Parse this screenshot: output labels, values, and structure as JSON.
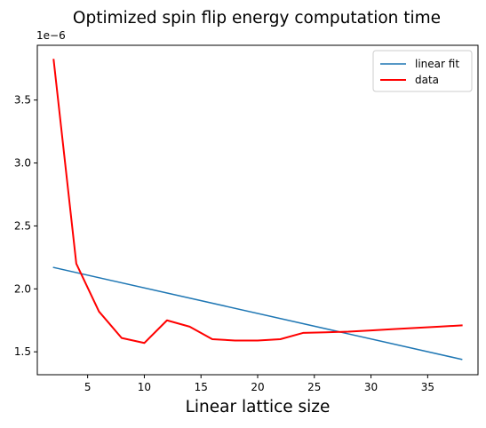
{
  "chart_data": {
    "type": "line",
    "title": "Optimized spin flip energy computation time",
    "xlabel": "Linear lattice size",
    "ylabel": "",
    "y_offset_label": "1e−6",
    "y_scale_factor": 1e-06,
    "xlim": [
      0.56,
      39.44
    ],
    "ylim": [
      1.318,
      3.935
    ],
    "xticks": [
      5,
      10,
      15,
      20,
      25,
      30,
      35
    ],
    "yticks": [
      1.5,
      2.0,
      2.5,
      3.0,
      3.5
    ],
    "xtick_labels": [
      "5",
      "10",
      "15",
      "20",
      "25",
      "30",
      "35"
    ],
    "ytick_labels": [
      "1.5",
      "2.0",
      "2.5",
      "3.0",
      "3.5"
    ],
    "grid": false,
    "legend_position": "top-right",
    "series": [
      {
        "name": "linear fit",
        "color": "#1f77b4",
        "line_width": 1.5,
        "x": [
          2,
          38
        ],
        "y": [
          2.17,
          1.44
        ]
      },
      {
        "name": "data",
        "color": "#ff0000",
        "line_width": 2,
        "x": [
          2,
          4,
          6,
          8,
          10,
          12,
          14,
          16,
          18,
          20,
          22,
          24,
          26,
          28,
          30,
          32,
          34,
          36,
          38
        ],
        "y": [
          3.82,
          2.2,
          1.82,
          1.61,
          1.57,
          1.75,
          1.7,
          1.6,
          1.59,
          1.59,
          1.6,
          1.65,
          1.655,
          1.66,
          1.67,
          1.68,
          1.69,
          1.7,
          1.71
        ]
      }
    ]
  }
}
